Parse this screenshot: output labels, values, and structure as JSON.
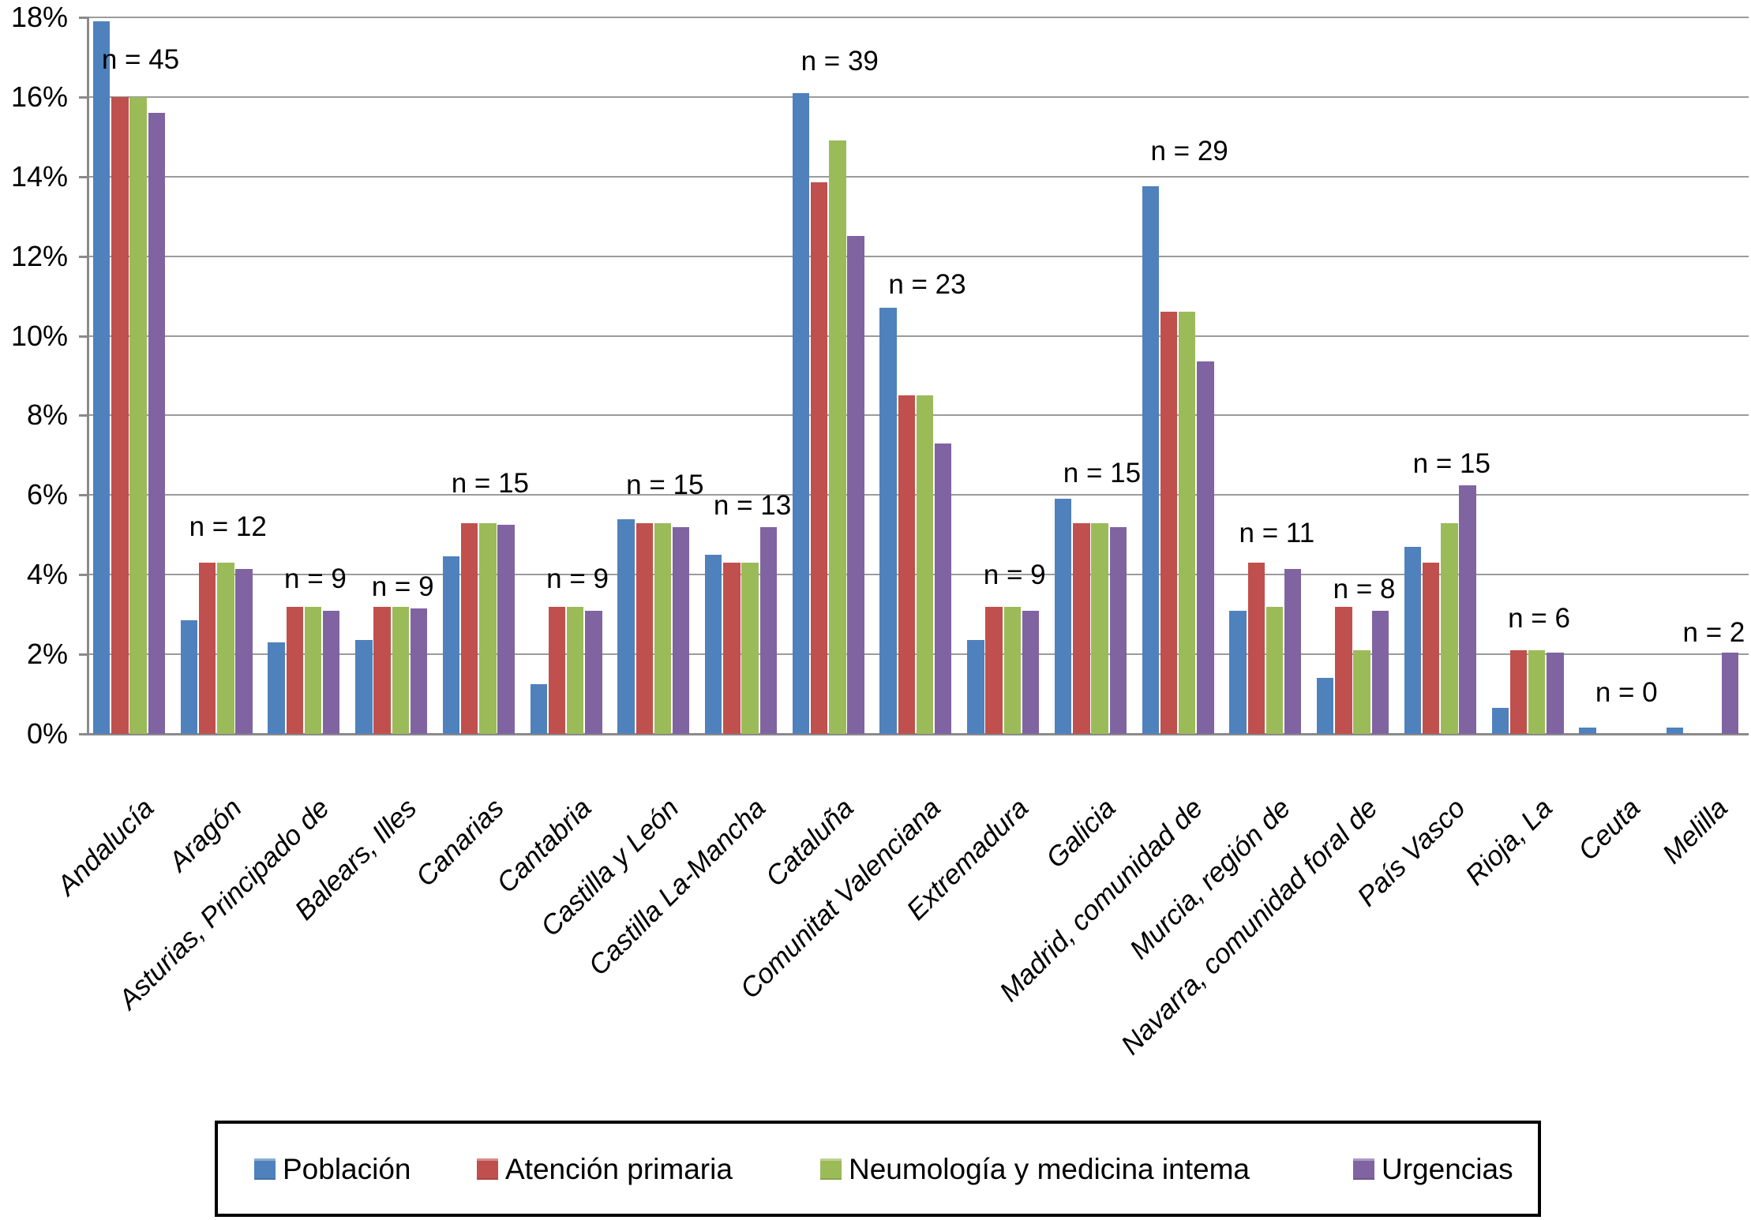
{
  "chart_data": {
    "type": "bar",
    "title": "",
    "xlabel": "",
    "ylabel": "",
    "categories": [
      "Andalucía",
      "Aragón",
      "Asturias, Principado de",
      "Balears, Illes",
      "Canarias",
      "Cantabria",
      "Castilla y León",
      "Castilla La-Mancha",
      "Cataluña",
      "Comunitat Valenciana",
      "Extremadura",
      "Galicia",
      "Madrid, comunidad de",
      "Murcia, región de",
      "Navarra, comunidad foral de",
      "País Vasco",
      "Rioja, La",
      "Ceuta",
      "Melilla"
    ],
    "series": [
      {
        "name": "Población",
        "color": "#4f81bd",
        "values": [
          17.9,
          2.85,
          2.3,
          2.35,
          4.45,
          1.25,
          5.4,
          4.5,
          16.1,
          10.7,
          2.35,
          5.9,
          13.75,
          3.1,
          1.4,
          4.7,
          0.65,
          0.15,
          0.15
        ]
      },
      {
        "name": "Atención primaria",
        "color": "#c0504d",
        "values": [
          16.0,
          4.3,
          3.2,
          3.2,
          5.3,
          3.2,
          5.3,
          4.3,
          13.85,
          8.5,
          3.2,
          5.3,
          10.6,
          4.3,
          3.2,
          4.3,
          2.1,
          0,
          0
        ]
      },
      {
        "name": "Neumología y medicina intema",
        "color": "#9bbb59",
        "values": [
          16.0,
          4.3,
          3.2,
          3.2,
          5.3,
          3.2,
          5.3,
          4.3,
          14.9,
          8.5,
          3.2,
          5.3,
          10.6,
          3.2,
          2.1,
          5.3,
          2.1,
          0,
          0
        ]
      },
      {
        "name": "Urgencias",
        "color": "#8064a2",
        "values": [
          15.6,
          4.15,
          3.1,
          3.15,
          5.25,
          3.1,
          5.2,
          5.2,
          12.5,
          7.3,
          3.1,
          5.2,
          9.35,
          4.15,
          3.1,
          6.25,
          2.05,
          0,
          2.05
        ]
      }
    ],
    "group_annotations": [
      {
        "text": "n = 45",
        "v": 16.6
      },
      {
        "text": "n = 12",
        "v": 4.85
      },
      {
        "text": "n = 9",
        "v": 3.55
      },
      {
        "text": "n = 9",
        "v": 3.35
      },
      {
        "text": "n = 15",
        "v": 5.95
      },
      {
        "text": "n = 9",
        "v": 3.55
      },
      {
        "text": "n = 15",
        "v": 5.9
      },
      {
        "text": "n = 13",
        "v": 5.4
      },
      {
        "text": "n = 39",
        "v": 16.55
      },
      {
        "text": "n = 23",
        "v": 10.95
      },
      {
        "text": "n = 9",
        "v": 3.65
      },
      {
        "text": "n = 15",
        "v": 6.2
      },
      {
        "text": "n = 29",
        "v": 14.3
      },
      {
        "text": "n = 11",
        "v": 4.7
      },
      {
        "text": "n = 8",
        "v": 3.3
      },
      {
        "text": "n = 15",
        "v": 6.45
      },
      {
        "text": "n = 6",
        "v": 2.55
      },
      {
        "text": "n = 0",
        "v": 0.7
      },
      {
        "text": "n = 2",
        "v": 2.2
      }
    ],
    "y_axis": {
      "unit": "%",
      "min": 0,
      "max": 18,
      "step": 2,
      "tick_labels": [
        "18%",
        "16%",
        "14%",
        "12%",
        "10%",
        "8%",
        "6%",
        "4%",
        "2%",
        "0%"
      ]
    },
    "layout_hints": {
      "grid": true,
      "legend_position": "bottom",
      "x_label_rotation_deg": 45
    }
  }
}
